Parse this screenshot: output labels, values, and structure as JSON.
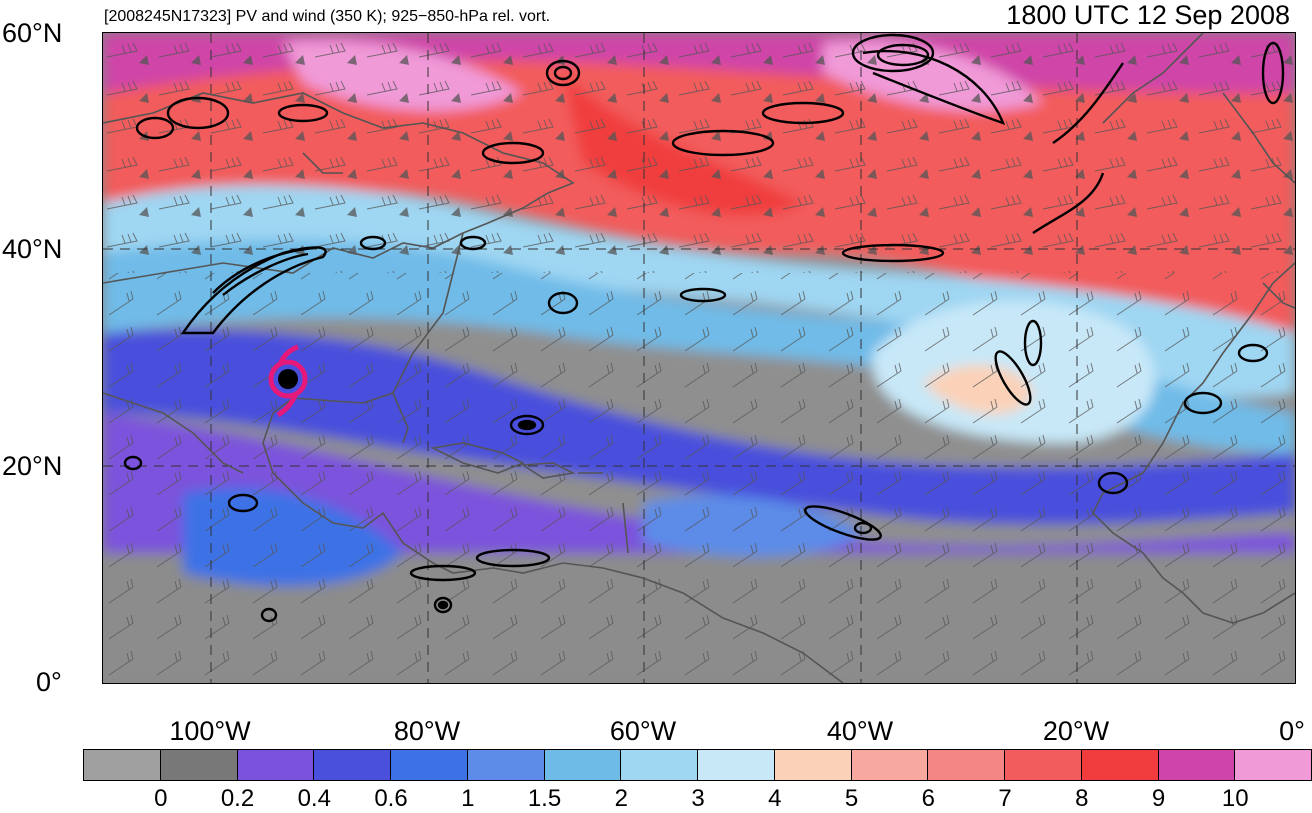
{
  "header": {
    "title": "[2008245N17323] PV and wind (350 K); 925−850-hPa rel. vort.",
    "time": "1800 UTC 12 Sep 2008"
  },
  "map": {
    "lat_ticks": [
      "60°N",
      "40°N",
      "20°N",
      "0°"
    ],
    "lon_ticks": [
      "100°W",
      "80°W",
      "60°W",
      "40°W",
      "20°W",
      "0°"
    ],
    "hurricane_symbol_color": "#e6197a",
    "coastline_color": "#555555",
    "vorticity_contour_color": "#000000"
  },
  "colorbar": {
    "colors": [
      "#a0a0a0",
      "#787878",
      "#7b52dc",
      "#4a4fdc",
      "#3d72e6",
      "#5c8ce8",
      "#6fbbe8",
      "#9fd6f2",
      "#c8e8f8",
      "#fbd2b8",
      "#f7a9a0",
      "#f48686",
      "#f25c5c",
      "#f03c3c",
      "#cf44a8",
      "#f09ad8"
    ],
    "labels": [
      "0",
      "0.2",
      "0.4",
      "0.6",
      "1",
      "1.5",
      "2",
      "3",
      "4",
      "5",
      "6",
      "7",
      "8",
      "9",
      "10"
    ]
  }
}
